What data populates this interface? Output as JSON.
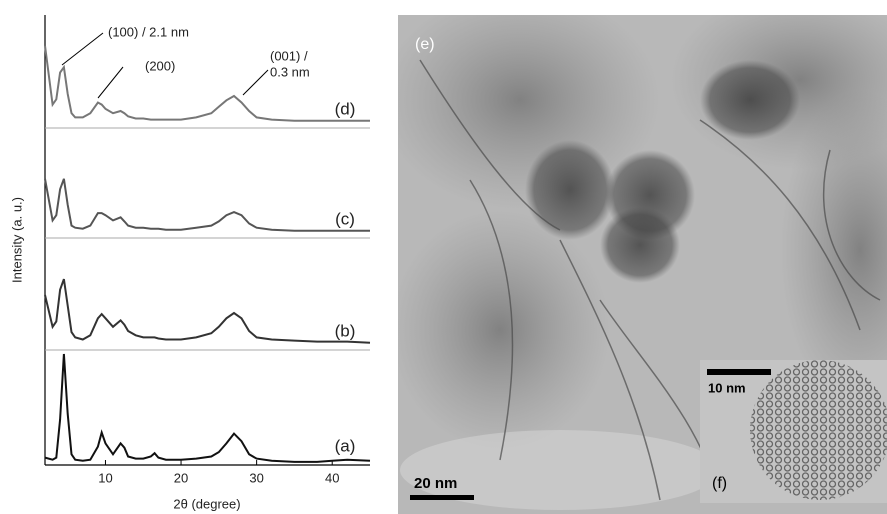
{
  "chart_data": [
    {
      "type": "line",
      "xlabel": "2θ (degree)",
      "ylabel": "Intensity (a. u.)",
      "xlim": [
        2,
        45
      ],
      "xticks": [
        10,
        20,
        30,
        40
      ],
      "ylim": [
        0,
        100
      ],
      "x": [
        2,
        3,
        3.5,
        4,
        4.5,
        5,
        5.5,
        6,
        7,
        8,
        9,
        9.5,
        10,
        11,
        12,
        12.5,
        13,
        14,
        15,
        16,
        16.5,
        17,
        18,
        20,
        22,
        24,
        25,
        26,
        27,
        28,
        29,
        30,
        32,
        35,
        38,
        40,
        42,
        45
      ],
      "series": [
        {
          "name": "(a)",
          "color": "#111111",
          "values": [
            5,
            3,
            5,
            40,
            100,
            45,
            8,
            3,
            2,
            3,
            15,
            28,
            18,
            8,
            18,
            14,
            6,
            4,
            4,
            6,
            9,
            5,
            3,
            3,
            4,
            6,
            10,
            18,
            27,
            20,
            8,
            4,
            2,
            1,
            1,
            2,
            3,
            2
          ]
        },
        {
          "name": "(b)",
          "color": "#333333",
          "values": [
            50,
            20,
            25,
            55,
            65,
            40,
            15,
            10,
            8,
            12,
            28,
            32,
            28,
            20,
            26,
            22,
            16,
            12,
            10,
            10,
            10,
            9,
            8,
            8,
            10,
            14,
            20,
            28,
            33,
            28,
            16,
            10,
            8,
            7,
            6,
            6,
            6,
            5
          ]
        },
        {
          "name": "(c)",
          "color": "#555555",
          "values": [
            55,
            15,
            20,
            45,
            55,
            30,
            10,
            8,
            7,
            10,
            22,
            22,
            20,
            15,
            18,
            14,
            10,
            8,
            8,
            7,
            7,
            7,
            6,
            6,
            8,
            10,
            14,
            20,
            23,
            20,
            12,
            8,
            6,
            5,
            5,
            5,
            5,
            5
          ]
        },
        {
          "name": "(d)",
          "color": "#777777",
          "values": [
            75,
            20,
            25,
            50,
            55,
            30,
            12,
            8,
            8,
            12,
            22,
            20,
            16,
            12,
            14,
            12,
            9,
            7,
            7,
            6,
            6,
            6,
            6,
            6,
            8,
            12,
            18,
            24,
            28,
            22,
            14,
            8,
            6,
            5,
            5,
            5,
            5,
            5
          ]
        }
      ],
      "annotations": [
        "(100) / 2.1 nm",
        "(200)",
        "(001) /",
        "0.3 nm"
      ]
    },
    {
      "type": "image",
      "labels": [
        "(e)",
        "20 nm",
        "10 nm",
        "(f)"
      ]
    }
  ]
}
